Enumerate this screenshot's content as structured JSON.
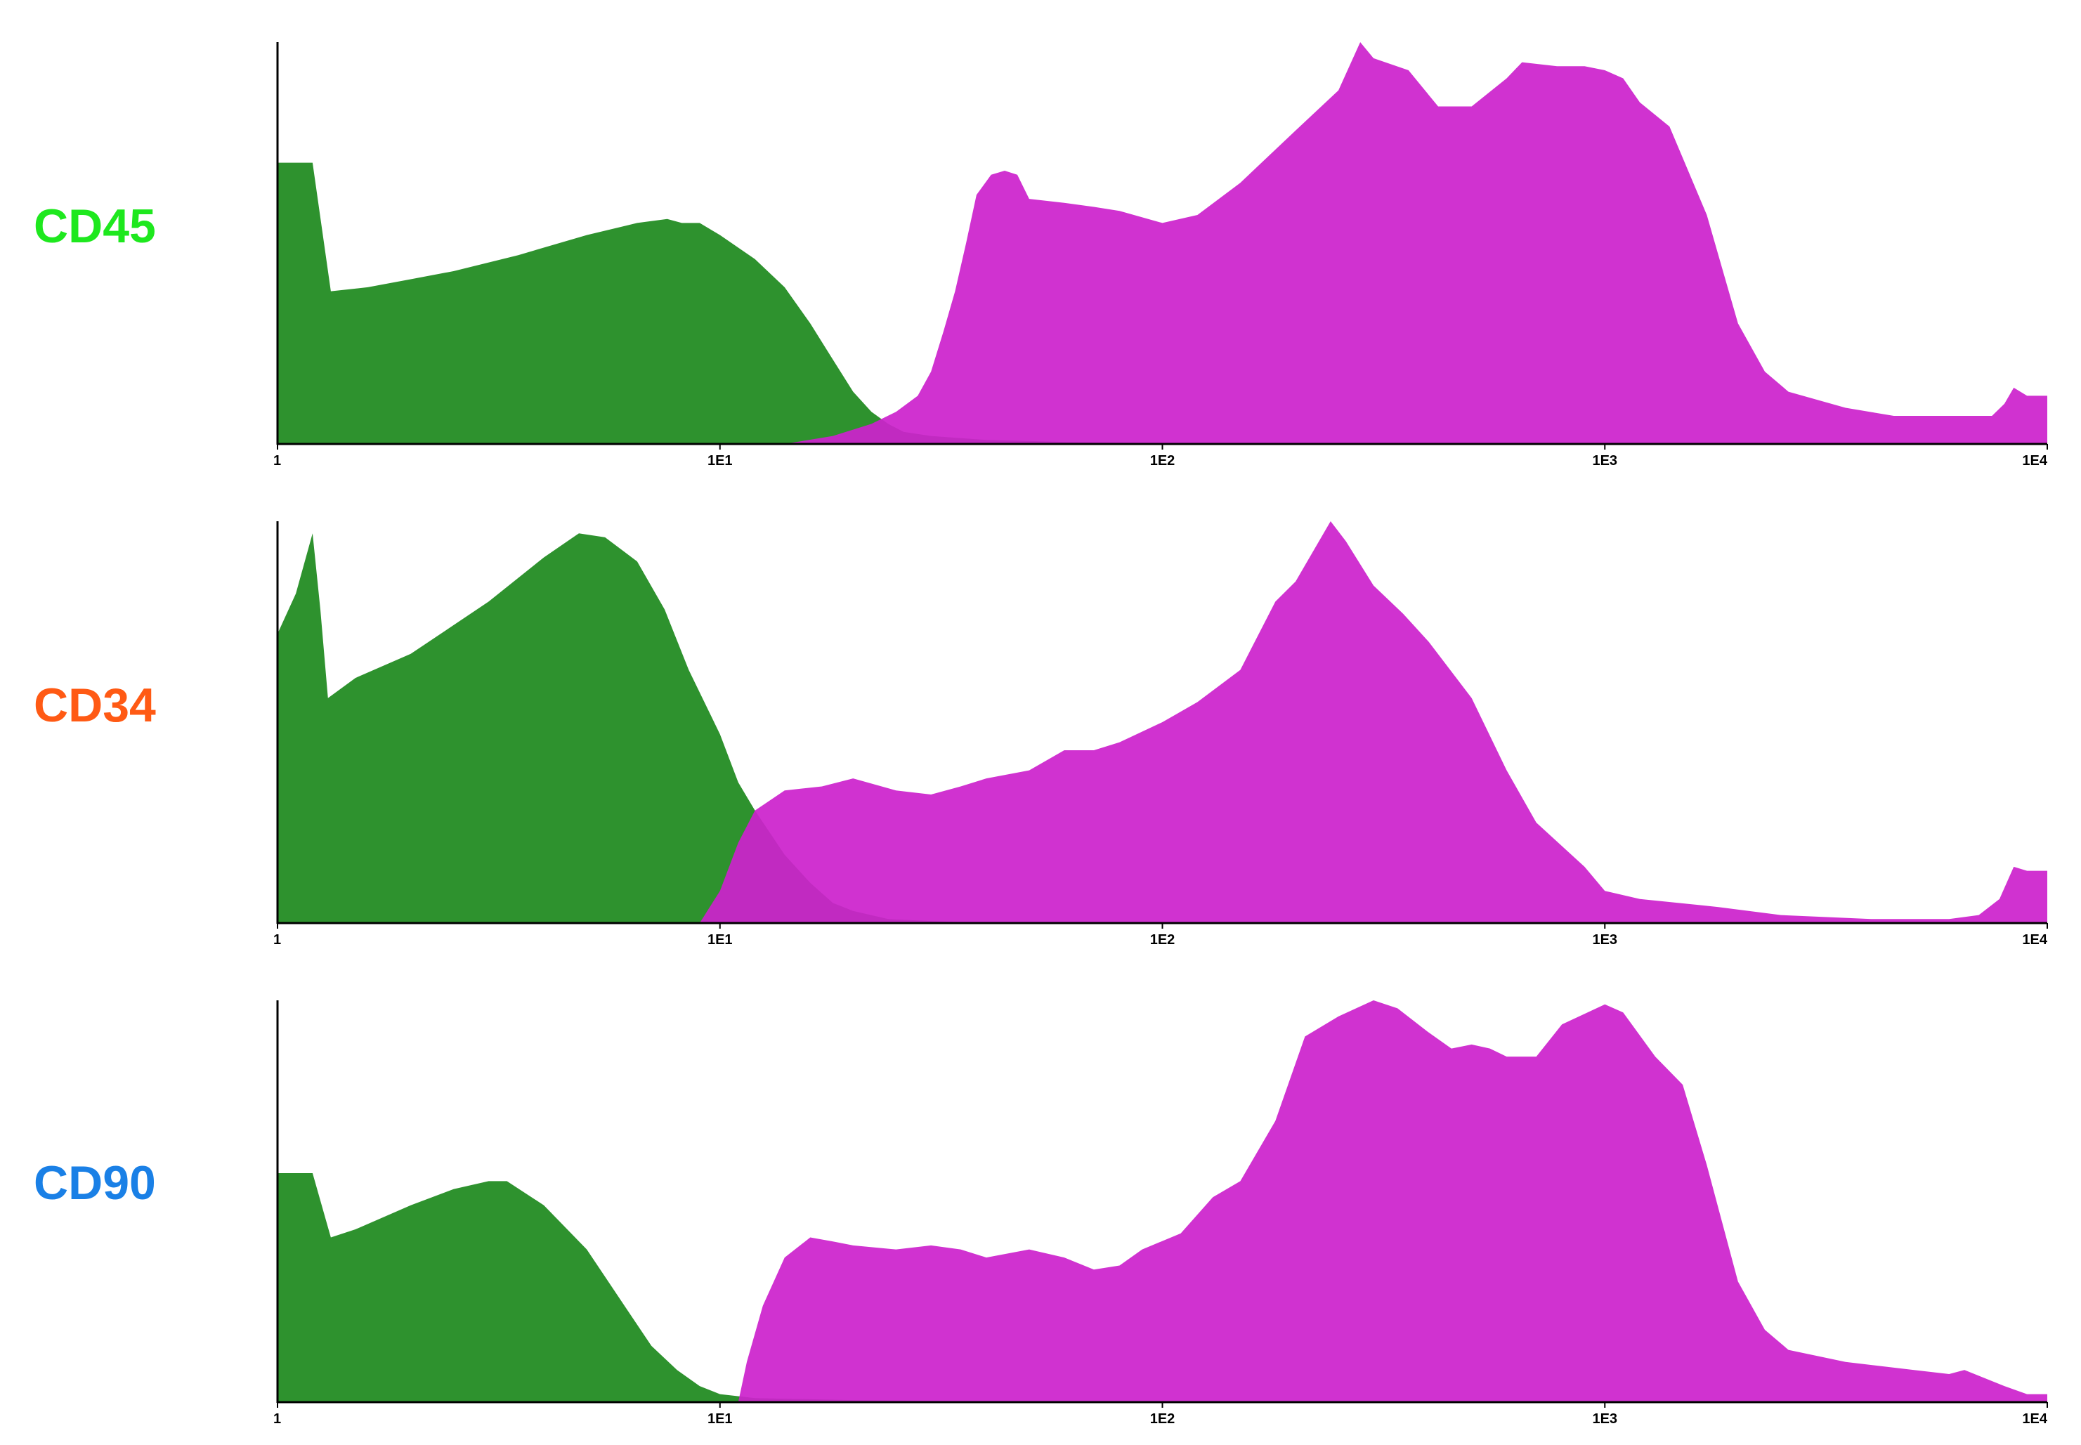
{
  "chart_data": [
    {
      "type": "area",
      "marker": "CD45",
      "marker_color": "#1ee81e",
      "x_scale": "log",
      "xlim": [
        1,
        10000
      ],
      "ylim": [
        0,
        100
      ],
      "xticks": [
        {
          "value": 1,
          "label": "1"
        },
        {
          "value": 10,
          "label": "1E1"
        },
        {
          "value": 100,
          "label": "1E2"
        },
        {
          "value": 1000,
          "label": "1E3"
        },
        {
          "value": 10000,
          "label": "1E4"
        }
      ],
      "grid": false,
      "series": [
        {
          "color": "#2e922e",
          "points": [
            [
              1,
              70
            ],
            [
              1.2,
              70
            ],
            [
              1.32,
              38
            ],
            [
              1.6,
              39
            ],
            [
              2,
              41
            ],
            [
              2.5,
              43
            ],
            [
              3.5,
              47
            ],
            [
              5,
              52
            ],
            [
              6.5,
              55
            ],
            [
              7.6,
              56
            ],
            [
              8.2,
              55
            ],
            [
              9,
              55
            ],
            [
              10,
              52
            ],
            [
              12,
              46
            ],
            [
              14,
              39
            ],
            [
              16,
              30
            ],
            [
              18,
              21
            ],
            [
              20,
              13
            ],
            [
              22,
              8
            ],
            [
              24,
              5
            ],
            [
              26,
              3
            ],
            [
              30,
              2
            ],
            [
              40,
              1
            ],
            [
              60,
              0.5
            ],
            [
              100,
              0.2
            ],
            [
              1000,
              0
            ],
            [
              10000,
              0
            ]
          ]
        },
        {
          "color": "#cc22cc",
          "points": [
            [
              14,
              0
            ],
            [
              18,
              2
            ],
            [
              22,
              5
            ],
            [
              25,
              8
            ],
            [
              28,
              12
            ],
            [
              30,
              18
            ],
            [
              32,
              28
            ],
            [
              34,
              38
            ],
            [
              36,
              50
            ],
            [
              38,
              62
            ],
            [
              41,
              67
            ],
            [
              44,
              68
            ],
            [
              47,
              67
            ],
            [
              50,
              61
            ],
            [
              60,
              60
            ],
            [
              70,
              59
            ],
            [
              80,
              58
            ],
            [
              100,
              55
            ],
            [
              120,
              57
            ],
            [
              150,
              65
            ],
            [
              200,
              78
            ],
            [
              250,
              88
            ],
            [
              280,
              100
            ],
            [
              300,
              96
            ],
            [
              360,
              93
            ],
            [
              420,
              84
            ],
            [
              500,
              84
            ],
            [
              600,
              91
            ],
            [
              650,
              95
            ],
            [
              780,
              94
            ],
            [
              900,
              94
            ],
            [
              1000,
              93
            ],
            [
              1100,
              91
            ],
            [
              1200,
              85
            ],
            [
              1400,
              79
            ],
            [
              1700,
              57
            ],
            [
              2000,
              30
            ],
            [
              2300,
              18
            ],
            [
              2600,
              13
            ],
            [
              3500,
              9
            ],
            [
              4500,
              7
            ],
            [
              6000,
              7
            ],
            [
              7500,
              7
            ],
            [
              8000,
              10
            ],
            [
              8400,
              14
            ],
            [
              9000,
              12
            ],
            [
              10000,
              12
            ]
          ]
        }
      ]
    },
    {
      "type": "area",
      "marker": "CD34",
      "marker_color": "#ff5a14",
      "x_scale": "log",
      "xlim": [
        1,
        10000
      ],
      "ylim": [
        0,
        100
      ],
      "xticks": [
        {
          "value": 1,
          "label": "1"
        },
        {
          "value": 10,
          "label": "1E1"
        },
        {
          "value": 100,
          "label": "1E2"
        },
        {
          "value": 1000,
          "label": "1E3"
        },
        {
          "value": 10000,
          "label": "1E4"
        }
      ],
      "grid": false,
      "series": [
        {
          "color": "#2e922e",
          "points": [
            [
              1,
              72
            ],
            [
              1.1,
              82
            ],
            [
              1.2,
              97
            ],
            [
              1.25,
              78
            ],
            [
              1.3,
              56
            ],
            [
              1.5,
              61
            ],
            [
              2,
              67
            ],
            [
              3,
              80
            ],
            [
              4,
              91
            ],
            [
              4.8,
              97
            ],
            [
              5.5,
              96
            ],
            [
              6.5,
              90
            ],
            [
              7.5,
              78
            ],
            [
              8.5,
              63
            ],
            [
              10,
              47
            ],
            [
              11,
              35
            ],
            [
              12,
              28
            ],
            [
              14,
              17
            ],
            [
              16,
              10
            ],
            [
              18,
              5
            ],
            [
              20,
              3
            ],
            [
              24,
              1
            ],
            [
              30,
              0.5
            ],
            [
              40,
              0
            ],
            [
              10000,
              0
            ]
          ]
        },
        {
          "color": "#cc22cc",
          "points": [
            [
              9,
              0
            ],
            [
              10,
              8
            ],
            [
              11,
              20
            ],
            [
              12,
              28
            ],
            [
              14,
              33
            ],
            [
              17,
              34
            ],
            [
              20,
              36
            ],
            [
              25,
              33
            ],
            [
              30,
              32
            ],
            [
              35,
              34
            ],
            [
              40,
              36
            ],
            [
              50,
              38
            ],
            [
              60,
              43
            ],
            [
              70,
              43
            ],
            [
              80,
              45
            ],
            [
              100,
              50
            ],
            [
              120,
              55
            ],
            [
              150,
              63
            ],
            [
              180,
              80
            ],
            [
              200,
              85
            ],
            [
              240,
              100
            ],
            [
              260,
              95
            ],
            [
              300,
              84
            ],
            [
              350,
              77
            ],
            [
              400,
              70
            ],
            [
              500,
              56
            ],
            [
              600,
              38
            ],
            [
              700,
              25
            ],
            [
              900,
              14
            ],
            [
              1000,
              8
            ],
            [
              1200,
              6
            ],
            [
              1800,
              4
            ],
            [
              2500,
              2
            ],
            [
              4000,
              1
            ],
            [
              6000,
              1
            ],
            [
              7000,
              2
            ],
            [
              7800,
              6
            ],
            [
              8400,
              14
            ],
            [
              9000,
              13
            ],
            [
              10000,
              13
            ]
          ]
        }
      ]
    },
    {
      "type": "area",
      "marker": "CD90",
      "marker_color": "#1a80e6",
      "x_scale": "log",
      "xlim": [
        1,
        10000
      ],
      "ylim": [
        0,
        100
      ],
      "xticks": [
        {
          "value": 1,
          "label": "1"
        },
        {
          "value": 10,
          "label": "1E1"
        },
        {
          "value": 100,
          "label": "1E2"
        },
        {
          "value": 1000,
          "label": "1E3"
        },
        {
          "value": 10000,
          "label": "1E4"
        }
      ],
      "grid": false,
      "series": [
        {
          "color": "#2e922e",
          "points": [
            [
              1,
              57
            ],
            [
              1.2,
              57
            ],
            [
              1.32,
              41
            ],
            [
              1.5,
              43
            ],
            [
              2,
              49
            ],
            [
              2.5,
              53
            ],
            [
              3,
              55
            ],
            [
              3.3,
              55
            ],
            [
              4,
              49
            ],
            [
              5,
              38
            ],
            [
              6,
              25
            ],
            [
              7,
              14
            ],
            [
              8,
              8
            ],
            [
              9,
              4
            ],
            [
              10,
              2
            ],
            [
              12,
              1
            ],
            [
              20,
              0.5
            ],
            [
              40,
              0.2
            ],
            [
              100,
              0
            ],
            [
              10000,
              0
            ]
          ]
        },
        {
          "color": "#cc22cc",
          "points": [
            [
              11,
              0
            ],
            [
              11.5,
              10
            ],
            [
              12.5,
              24
            ],
            [
              14,
              36
            ],
            [
              16,
              41
            ],
            [
              18,
              40
            ],
            [
              20,
              39
            ],
            [
              25,
              38
            ],
            [
              30,
              39
            ],
            [
              35,
              38
            ],
            [
              40,
              36
            ],
            [
              50,
              38
            ],
            [
              60,
              36
            ],
            [
              70,
              33
            ],
            [
              80,
              34
            ],
            [
              90,
              38
            ],
            [
              110,
              42
            ],
            [
              130,
              51
            ],
            [
              150,
              55
            ],
            [
              180,
              70
            ],
            [
              210,
              91
            ],
            [
              250,
              96
            ],
            [
              300,
              100
            ],
            [
              340,
              98
            ],
            [
              400,
              92
            ],
            [
              450,
              88
            ],
            [
              500,
              89
            ],
            [
              550,
              88
            ],
            [
              600,
              86
            ],
            [
              700,
              86
            ],
            [
              800,
              94
            ],
            [
              1000,
              99
            ],
            [
              1100,
              97
            ],
            [
              1300,
              86
            ],
            [
              1500,
              79
            ],
            [
              1700,
              59
            ],
            [
              2000,
              30
            ],
            [
              2300,
              18
            ],
            [
              2600,
              13
            ],
            [
              3500,
              10
            ],
            [
              5000,
              8
            ],
            [
              6000,
              7
            ],
            [
              6500,
              8
            ],
            [
              8000,
              4
            ],
            [
              9000,
              2
            ],
            [
              10000,
              2
            ]
          ]
        }
      ]
    }
  ]
}
